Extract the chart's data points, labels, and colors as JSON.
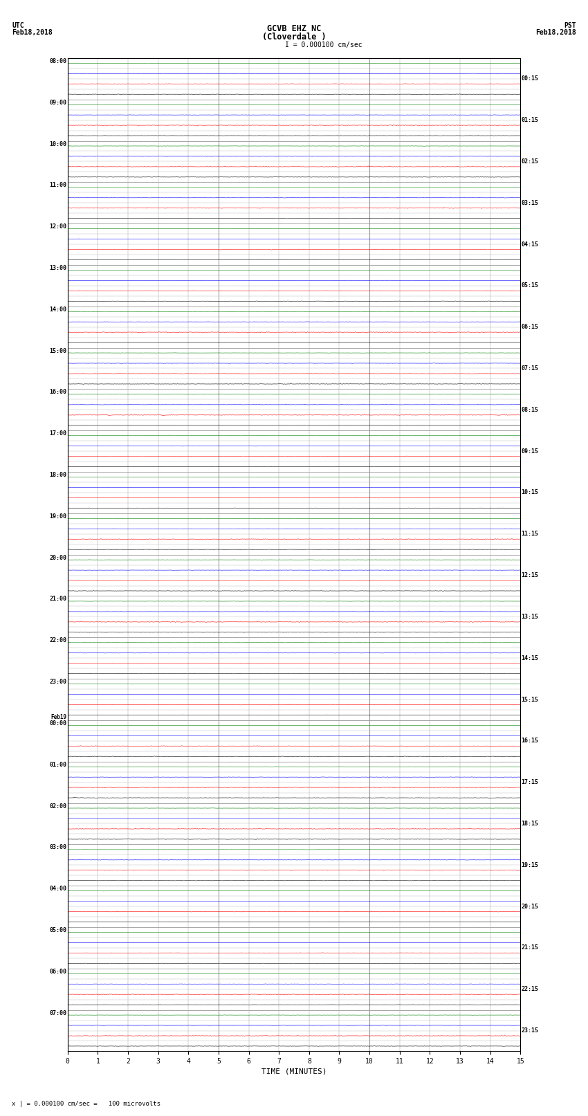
{
  "title_line1": "GCVB EHZ NC",
  "title_line2": "(Cloverdale )",
  "scale_label": "I = 0.000100 cm/sec",
  "left_header_line1": "UTC",
  "left_header_line2": "Feb18,2018",
  "right_header_line1": "PST",
  "right_header_line2": "Feb18,2018",
  "footer_note": "x | = 0.000100 cm/sec =   100 microvolts",
  "xlabel": "TIME (MINUTES)",
  "minutes_per_row": 15,
  "colors": [
    "black",
    "red",
    "blue",
    "green"
  ],
  "bg_color": "white",
  "grid_color": "#999999",
  "noise_amp_black": 0.012,
  "noise_amp_red": 0.018,
  "noise_amp_blue": 0.01,
  "noise_amp_green": 0.008,
  "samples_per_minute": 100,
  "fig_width": 8.5,
  "fig_height": 16.13,
  "dpi": 100,
  "left_time_labels": [
    "08:00",
    "09:00",
    "10:00",
    "11:00",
    "12:00",
    "13:00",
    "14:00",
    "15:00",
    "16:00",
    "17:00",
    "18:00",
    "19:00",
    "20:00",
    "21:00",
    "22:00",
    "23:00",
    "Feb19\n00:00",
    "01:00",
    "02:00",
    "03:00",
    "04:00",
    "05:00",
    "06:00",
    "07:00"
  ],
  "right_time_labels": [
    "00:15",
    "01:15",
    "02:15",
    "03:15",
    "04:15",
    "05:15",
    "06:15",
    "07:15",
    "08:15",
    "09:15",
    "10:15",
    "11:15",
    "12:15",
    "13:15",
    "14:15",
    "15:15",
    "16:15",
    "17:15",
    "18:15",
    "19:15",
    "20:15",
    "21:15",
    "22:15",
    "23:15"
  ],
  "x_ticks": [
    0,
    1,
    2,
    3,
    4,
    5,
    6,
    7,
    8,
    9,
    10,
    11,
    12,
    13,
    14,
    15
  ]
}
